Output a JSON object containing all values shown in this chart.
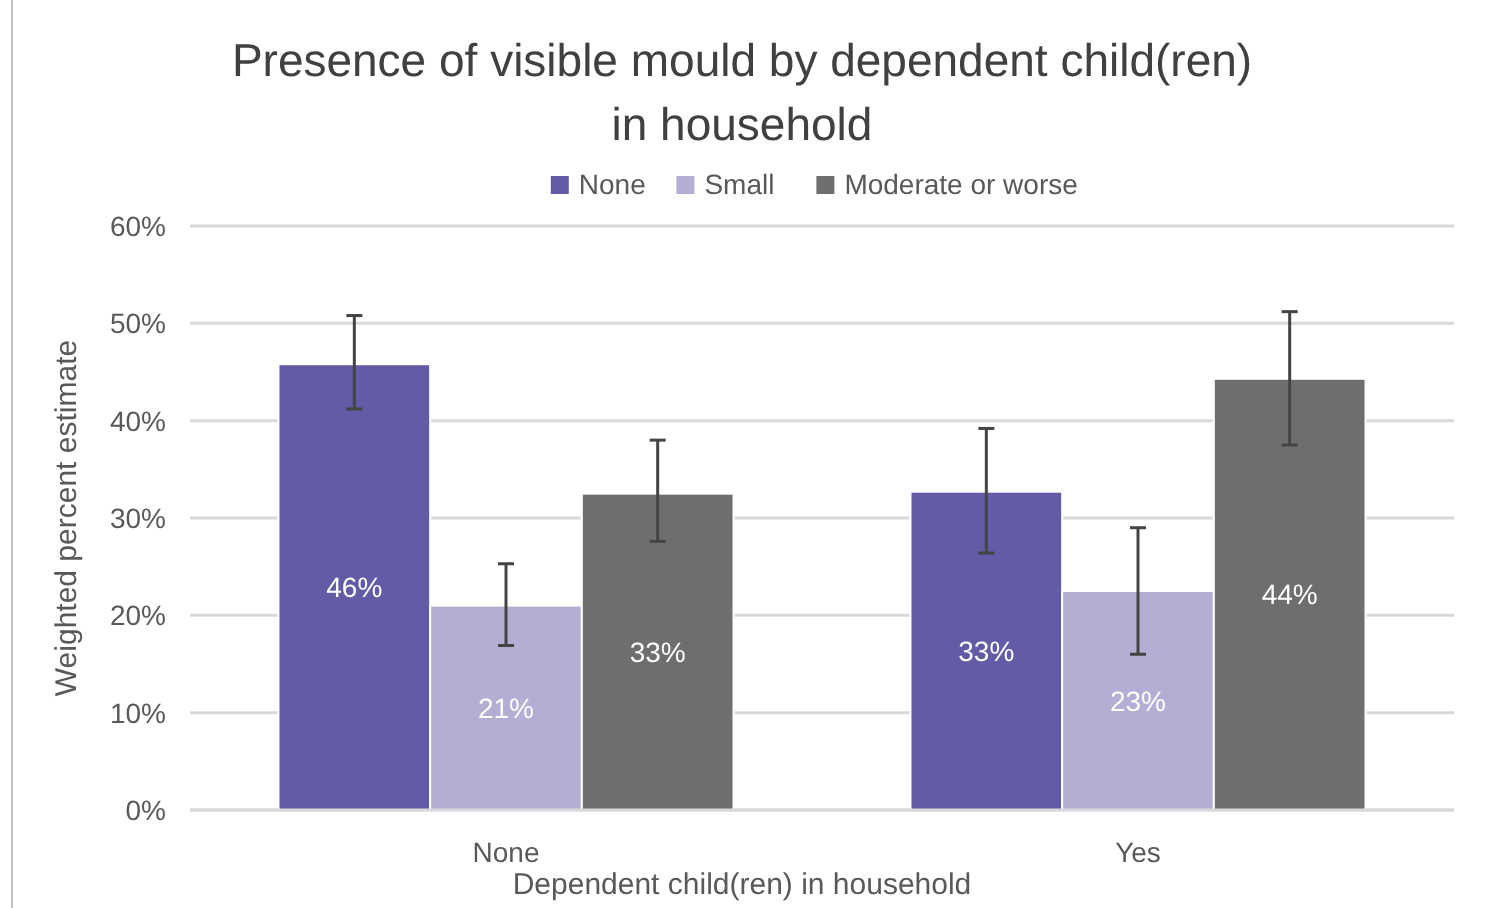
{
  "chart_data": {
    "type": "bar",
    "title": "Presence of visible mould by dependent child(ren) in household",
    "xlabel": "Dependent child(ren) in household",
    "ylabel": "Weighted percent estimate",
    "categories": [
      "None",
      "Yes"
    ],
    "series": [
      {
        "name": "None",
        "color": "#635ba6",
        "values": [
          45.8,
          32.7
        ],
        "errors": [
          [
            41.2,
            50.8
          ],
          [
            26.4,
            39.2
          ]
        ],
        "value_labels": [
          "46%",
          "33%"
        ]
      },
      {
        "name": "Small",
        "color": "#b2aed4",
        "values": [
          21.0,
          22.5
        ],
        "errors": [
          [
            16.9,
            25.3
          ],
          [
            16.0,
            29.0
          ]
        ],
        "value_labels": [
          "21%",
          "23%"
        ]
      },
      {
        "name": "Moderate or worse",
        "color": "#6d6e70",
        "values": [
          32.5,
          44.3
        ],
        "errors": [
          [
            27.6,
            38.0
          ],
          [
            37.5,
            51.2
          ]
        ],
        "value_labels": [
          "33%",
          "44%"
        ]
      }
    ],
    "ylim": [
      0,
      60
    ],
    "yticks": [
      {
        "value": 0,
        "label": "0%"
      },
      {
        "value": 10,
        "label": "10%"
      },
      {
        "value": 20,
        "label": "20%"
      },
      {
        "value": 30,
        "label": "30%"
      },
      {
        "value": 40,
        "label": "40%"
      },
      {
        "value": 50,
        "label": "50%"
      },
      {
        "value": 60,
        "label": "60%"
      }
    ],
    "grid": "y",
    "legend": "top"
  }
}
